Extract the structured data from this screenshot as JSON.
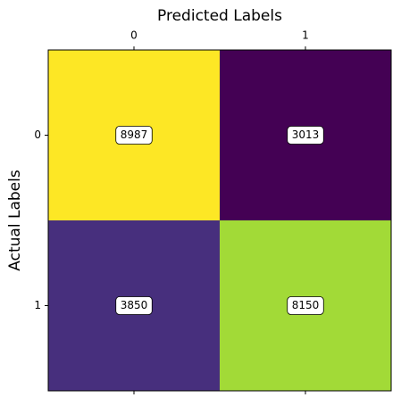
{
  "chart_data": {
    "type": "heatmap",
    "title": "Predicted Labels",
    "y_label": "Actual Labels",
    "x_categories": [
      "0",
      "1"
    ],
    "y_categories": [
      "0",
      "1"
    ],
    "values": [
      [
        8987,
        3013
      ],
      [
        3850,
        8150
      ]
    ],
    "colors": [
      [
        "#fde725",
        "#440154"
      ],
      [
        "#472f7d",
        "#a2da37"
      ]
    ]
  }
}
